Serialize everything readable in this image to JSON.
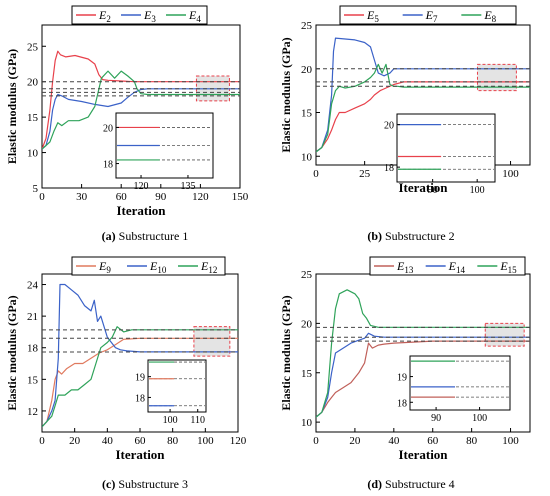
{
  "chart_data": [
    {
      "type": "line",
      "caption_label": "(a)",
      "caption_text": "Substructure 1",
      "xlabel": "Iteration",
      "ylabel": "Elastic modulus (GPa)",
      "xlim": [
        0,
        150
      ],
      "ylim": [
        5,
        28
      ],
      "xticks": [
        0,
        30,
        60,
        90,
        120,
        150
      ],
      "yticks": [
        5,
        10,
        15,
        20,
        25
      ],
      "reference_lines": [
        20,
        19,
        18.5,
        18
      ],
      "highlight_box": {
        "x": [
          117,
          142
        ],
        "y": [
          17.3,
          20.8
        ]
      },
      "legend": [
        {
          "base": "E",
          "sub": "2",
          "color": "#e8414b"
        },
        {
          "base": "E",
          "sub": "3",
          "color": "#3b62c8"
        },
        {
          "base": "E",
          "sub": "4",
          "color": "#2fa35a"
        }
      ],
      "series": [
        {
          "name": "E2",
          "color": "#e8414b",
          "x": [
            0,
            3,
            6,
            8,
            10,
            12,
            14,
            18,
            25,
            35,
            40,
            43,
            46,
            50,
            60,
            70,
            80,
            100,
            120,
            150
          ],
          "y": [
            10.5,
            12,
            16,
            20,
            23,
            24.3,
            23.8,
            23.5,
            23.7,
            23.2,
            22.5,
            21,
            20.3,
            20.2,
            20.1,
            20,
            20,
            20,
            20,
            20
          ]
        },
        {
          "name": "E3",
          "color": "#3b62c8",
          "x": [
            0,
            3,
            6,
            8,
            10,
            12,
            15,
            20,
            30,
            40,
            50,
            60,
            65,
            70,
            75,
            80,
            90,
            120,
            150
          ],
          "y": [
            10.5,
            11,
            13,
            16,
            17.5,
            18.2,
            18,
            17.5,
            17.2,
            16.8,
            16.5,
            17,
            17.8,
            18.5,
            18.9,
            19,
            19,
            19,
            19
          ]
        },
        {
          "name": "E4",
          "color": "#2fa35a",
          "x": [
            0,
            3,
            6,
            9,
            12,
            15,
            20,
            28,
            35,
            40,
            45,
            50,
            55,
            60,
            65,
            70,
            72,
            75,
            80,
            90,
            120,
            150
          ],
          "y": [
            10.5,
            11,
            11.5,
            13,
            14.2,
            13.8,
            14.5,
            14.5,
            15,
            16.5,
            20.5,
            21.5,
            20.5,
            21.5,
            20.8,
            20,
            19,
            18.3,
            18.2,
            18.2,
            18.2,
            18.2
          ]
        }
      ],
      "inset": {
        "xlim": [
          112,
          143
        ],
        "ylim": [
          17.2,
          20.8
        ],
        "xticks": [
          120,
          135
        ],
        "yticks": [
          18,
          20
        ],
        "lines": [
          {
            "y": 20,
            "color": "#e8414b"
          },
          {
            "y": 19,
            "color": "#3b62c8"
          },
          {
            "y": 18.2,
            "color": "#2fa35a"
          }
        ]
      }
    },
    {
      "type": "line",
      "caption_label": "(b)",
      "caption_text": "Substructure 2",
      "xlabel": "Iteration",
      "ylabel": "Elastic modulus (GPa)",
      "xlim": [
        0,
        110
      ],
      "ylim": [
        9,
        25
      ],
      "xticks": [
        0,
        25,
        50,
        75,
        100
      ],
      "yticks": [
        10,
        15,
        20,
        25
      ],
      "reference_lines": [
        20,
        18.5,
        18
      ],
      "highlight_box": {
        "x": [
          83,
          103
        ],
        "y": [
          17.5,
          20.5
        ]
      },
      "legend": [
        {
          "base": "E",
          "sub": "5",
          "color": "#e8414b"
        },
        {
          "base": "E",
          "sub": "7",
          "color": "#3b62c8"
        },
        {
          "base": "E",
          "sub": "8",
          "color": "#2fa35a"
        }
      ],
      "series": [
        {
          "name": "E5",
          "color": "#e8414b",
          "x": [
            0,
            3,
            6,
            8,
            10,
            12,
            15,
            20,
            25,
            28,
            30,
            33,
            36,
            40,
            45,
            50,
            60,
            80,
            110
          ],
          "y": [
            10.5,
            11,
            12,
            13,
            14.2,
            15,
            15,
            15.5,
            16,
            16.5,
            17,
            17.5,
            17.8,
            18.2,
            18.5,
            18.5,
            18.5,
            18.5,
            18.5
          ]
        },
        {
          "name": "E7",
          "color": "#3b62c8",
          "x": [
            0,
            3,
            6,
            8,
            9,
            10,
            15,
            20,
            25,
            28,
            30,
            32,
            35,
            38,
            40,
            45,
            50,
            60,
            80,
            110
          ],
          "y": [
            10.5,
            11,
            13,
            17,
            22,
            23.5,
            23.4,
            23.3,
            23,
            22.5,
            21,
            19.5,
            19.2,
            19.5,
            20,
            20,
            20,
            20,
            20,
            20
          ]
        },
        {
          "name": "E8",
          "color": "#2fa35a",
          "x": [
            0,
            3,
            6,
            8,
            10,
            12,
            15,
            20,
            25,
            28,
            30,
            32,
            34,
            36,
            38,
            40,
            42,
            45,
            50,
            60,
            80,
            110
          ],
          "y": [
            10.5,
            11,
            12.5,
            16,
            17.5,
            18,
            17.8,
            18,
            18.5,
            19,
            19.5,
            20.5,
            19.5,
            20.5,
            18.2,
            18,
            18,
            17.9,
            17.9,
            17.9,
            17.9,
            17.9
          ]
        }
      ],
      "inset": {
        "xlim": [
          82,
          104
        ],
        "ylim": [
          17.3,
          20.5
        ],
        "xticks": [
          90,
          100
        ],
        "yticks": [
          18,
          20
        ],
        "lines": [
          {
            "y": 20,
            "color": "#3b62c8"
          },
          {
            "y": 18.5,
            "color": "#e8414b"
          },
          {
            "y": 17.9,
            "color": "#2fa35a"
          }
        ]
      }
    },
    {
      "type": "line",
      "caption_label": "(c)",
      "caption_text": "Substructure 3",
      "xlabel": "Iteration",
      "ylabel": "Elastic modulus (GPa)",
      "xlim": [
        0,
        120
      ],
      "ylim": [
        10,
        25
      ],
      "xticks": [
        0,
        20,
        40,
        60,
        80,
        100,
        120
      ],
      "yticks": [
        12,
        15,
        18,
        21,
        24
      ],
      "reference_lines": [
        19.7,
        18.9,
        17.6
      ],
      "highlight_box": {
        "x": [
          93,
          115
        ],
        "y": [
          17.2,
          20
        ]
      },
      "legend": [
        {
          "base": "E",
          "sub": "9",
          "color": "#e07a5f"
        },
        {
          "base": "E",
          "sub": "10",
          "color": "#3b62c8"
        },
        {
          "base": "E",
          "sub": "12",
          "color": "#2fa35a"
        }
      ],
      "series": [
        {
          "name": "E9",
          "color": "#e07a5f",
          "x": [
            0,
            3,
            6,
            8,
            10,
            12,
            15,
            20,
            25,
            30,
            35,
            40,
            45,
            50,
            60,
            80,
            120
          ],
          "y": [
            10.5,
            11,
            13,
            15,
            15.8,
            15.5,
            16,
            16.5,
            16.5,
            17,
            17.5,
            17.8,
            18.3,
            18.8,
            18.9,
            18.9,
            18.9
          ]
        },
        {
          "name": "E10",
          "color": "#3b62c8",
          "x": [
            0,
            3,
            6,
            8,
            10,
            11,
            14,
            18,
            22,
            26,
            30,
            32,
            34,
            36,
            40,
            45,
            48,
            52,
            60,
            80,
            120
          ],
          "y": [
            10.5,
            11,
            12,
            13,
            17,
            24,
            24,
            23.5,
            23,
            22,
            21.5,
            22.5,
            20.5,
            21,
            19,
            18,
            17.8,
            17.7,
            17.6,
            17.6,
            17.6
          ]
        },
        {
          "name": "E12",
          "color": "#2fa35a",
          "x": [
            0,
            3,
            6,
            8,
            10,
            14,
            18,
            22,
            26,
            30,
            33,
            36,
            40,
            43,
            46,
            50,
            55,
            60,
            80,
            120
          ],
          "y": [
            10.5,
            11,
            11.5,
            12.5,
            13.5,
            13.5,
            14,
            14,
            14.5,
            15,
            16.5,
            18,
            18.5,
            19,
            20,
            19.5,
            19.7,
            19.7,
            19.7,
            19.7
          ]
        }
      ],
      "inset": {
        "xlim": [
          92,
          113
        ],
        "ylim": [
          17.3,
          19.8
        ],
        "xticks": [
          100,
          110
        ],
        "yticks": [
          18,
          19
        ],
        "lines": [
          {
            "y": 19.7,
            "color": "#2fa35a"
          },
          {
            "y": 18.9,
            "color": "#e07a5f"
          },
          {
            "y": 17.6,
            "color": "#3b62c8"
          }
        ]
      }
    },
    {
      "type": "line",
      "caption_label": "(d)",
      "caption_text": "Substructure 4",
      "xlabel": "Iteration",
      "ylabel": "Elastic modulus (GPa)",
      "xlim": [
        0,
        110
      ],
      "ylim": [
        9,
        25
      ],
      "xticks": [
        0,
        20,
        40,
        60,
        80,
        100
      ],
      "yticks": [
        10,
        15,
        20,
        25
      ],
      "reference_lines": [
        19.6,
        18.6,
        18.2
      ],
      "highlight_box": {
        "x": [
          87,
          107
        ],
        "y": [
          17.7,
          20
        ]
      },
      "legend": [
        {
          "base": "E",
          "sub": "13",
          "color": "#c0605a"
        },
        {
          "base": "E",
          "sub": "14",
          "color": "#3b62c8"
        },
        {
          "base": "E",
          "sub": "15",
          "color": "#2fa35a"
        }
      ],
      "series": [
        {
          "name": "E13",
          "color": "#c0605a",
          "x": [
            0,
            3,
            6,
            8,
            10,
            14,
            18,
            22,
            25,
            27,
            29,
            32,
            35,
            40,
            50,
            60,
            80,
            110
          ],
          "y": [
            10.5,
            11,
            12,
            12.5,
            13,
            13.5,
            14,
            15,
            16,
            18,
            17.5,
            17.8,
            17.9,
            18,
            18.1,
            18.2,
            18.2,
            18.2
          ]
        },
        {
          "name": "E14",
          "color": "#3b62c8",
          "x": [
            0,
            3,
            6,
            8,
            10,
            14,
            18,
            22,
            25,
            27,
            30,
            35,
            40,
            50,
            60,
            80,
            110
          ],
          "y": [
            10.5,
            11,
            12.5,
            15,
            17,
            17.5,
            18,
            18.3,
            18.5,
            19,
            18.7,
            18.6,
            18.6,
            18.6,
            18.6,
            18.6,
            18.6
          ]
        },
        {
          "name": "E15",
          "color": "#2fa35a",
          "x": [
            0,
            3,
            6,
            8,
            10,
            12,
            14,
            16,
            18,
            20,
            22,
            24,
            26,
            28,
            32,
            40,
            60,
            80,
            110
          ],
          "y": [
            10.5,
            11,
            13,
            18,
            21.5,
            23,
            23.2,
            23.4,
            23.2,
            23,
            22.5,
            21,
            20.5,
            19.8,
            19.6,
            19.6,
            19.6,
            19.6,
            19.6
          ]
        }
      ],
      "inset": {
        "xlim": [
          84,
          107
        ],
        "ylim": [
          17.7,
          19.8
        ],
        "xticks": [
          90,
          100
        ],
        "yticks": [
          18,
          19
        ],
        "lines": [
          {
            "y": 19.6,
            "color": "#2fa35a"
          },
          {
            "y": 18.6,
            "color": "#3b62c8"
          },
          {
            "y": 18.2,
            "color": "#c0605a"
          }
        ]
      }
    }
  ]
}
